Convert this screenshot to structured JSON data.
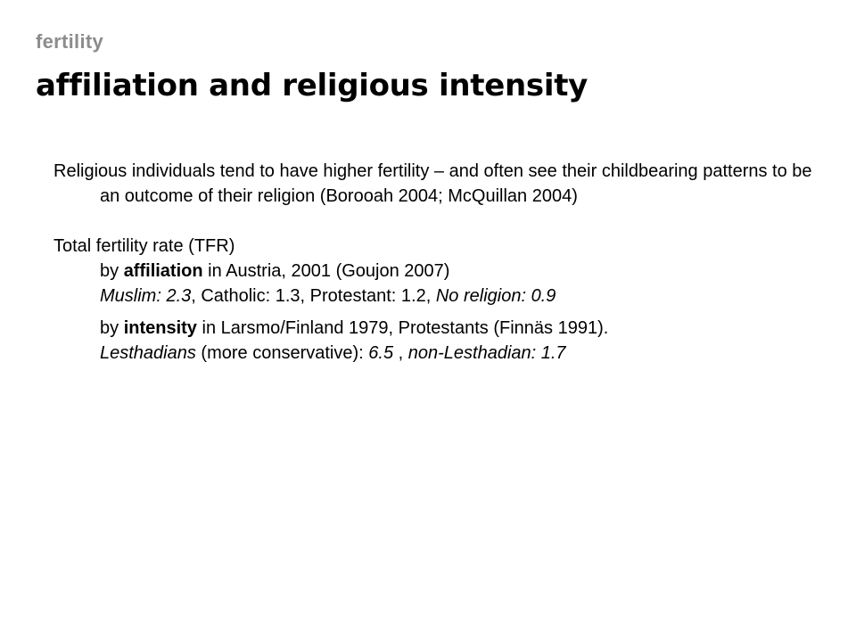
{
  "header": {
    "kicker": "fertility",
    "title": "affiliation and religious intensity"
  },
  "paragraph1": {
    "text": "Religious individuals tend to have higher fertility – and often see their childbearing patterns to be an outcome of their religion (Borooah 2004; McQuillan 2004)"
  },
  "paragraph2": {
    "lead": "Total fertility rate (TFR)",
    "affiliation_line": {
      "pre": "by ",
      "bold": "affiliation",
      "post": " in Austria, 2001 (Goujon 2007)"
    },
    "affiliation_values": {
      "muslim": "Muslim: 2.3",
      "catholic": ", Catholic: 1.3, Protestant: 1.2, ",
      "none": "No religion: 0.9"
    },
    "intensity_line": {
      "pre": "by ",
      "bold": "intensity",
      "post": " in Larsmo/Finland 1979, Protestants (Finnäs 1991)."
    },
    "intensity_values": {
      "lesthadians": "Lesthadians",
      "middle": " (more conservative): ",
      "value1": "6.5",
      "sep": " , ",
      "non": "non-Lesthadian: 1.7"
    }
  }
}
